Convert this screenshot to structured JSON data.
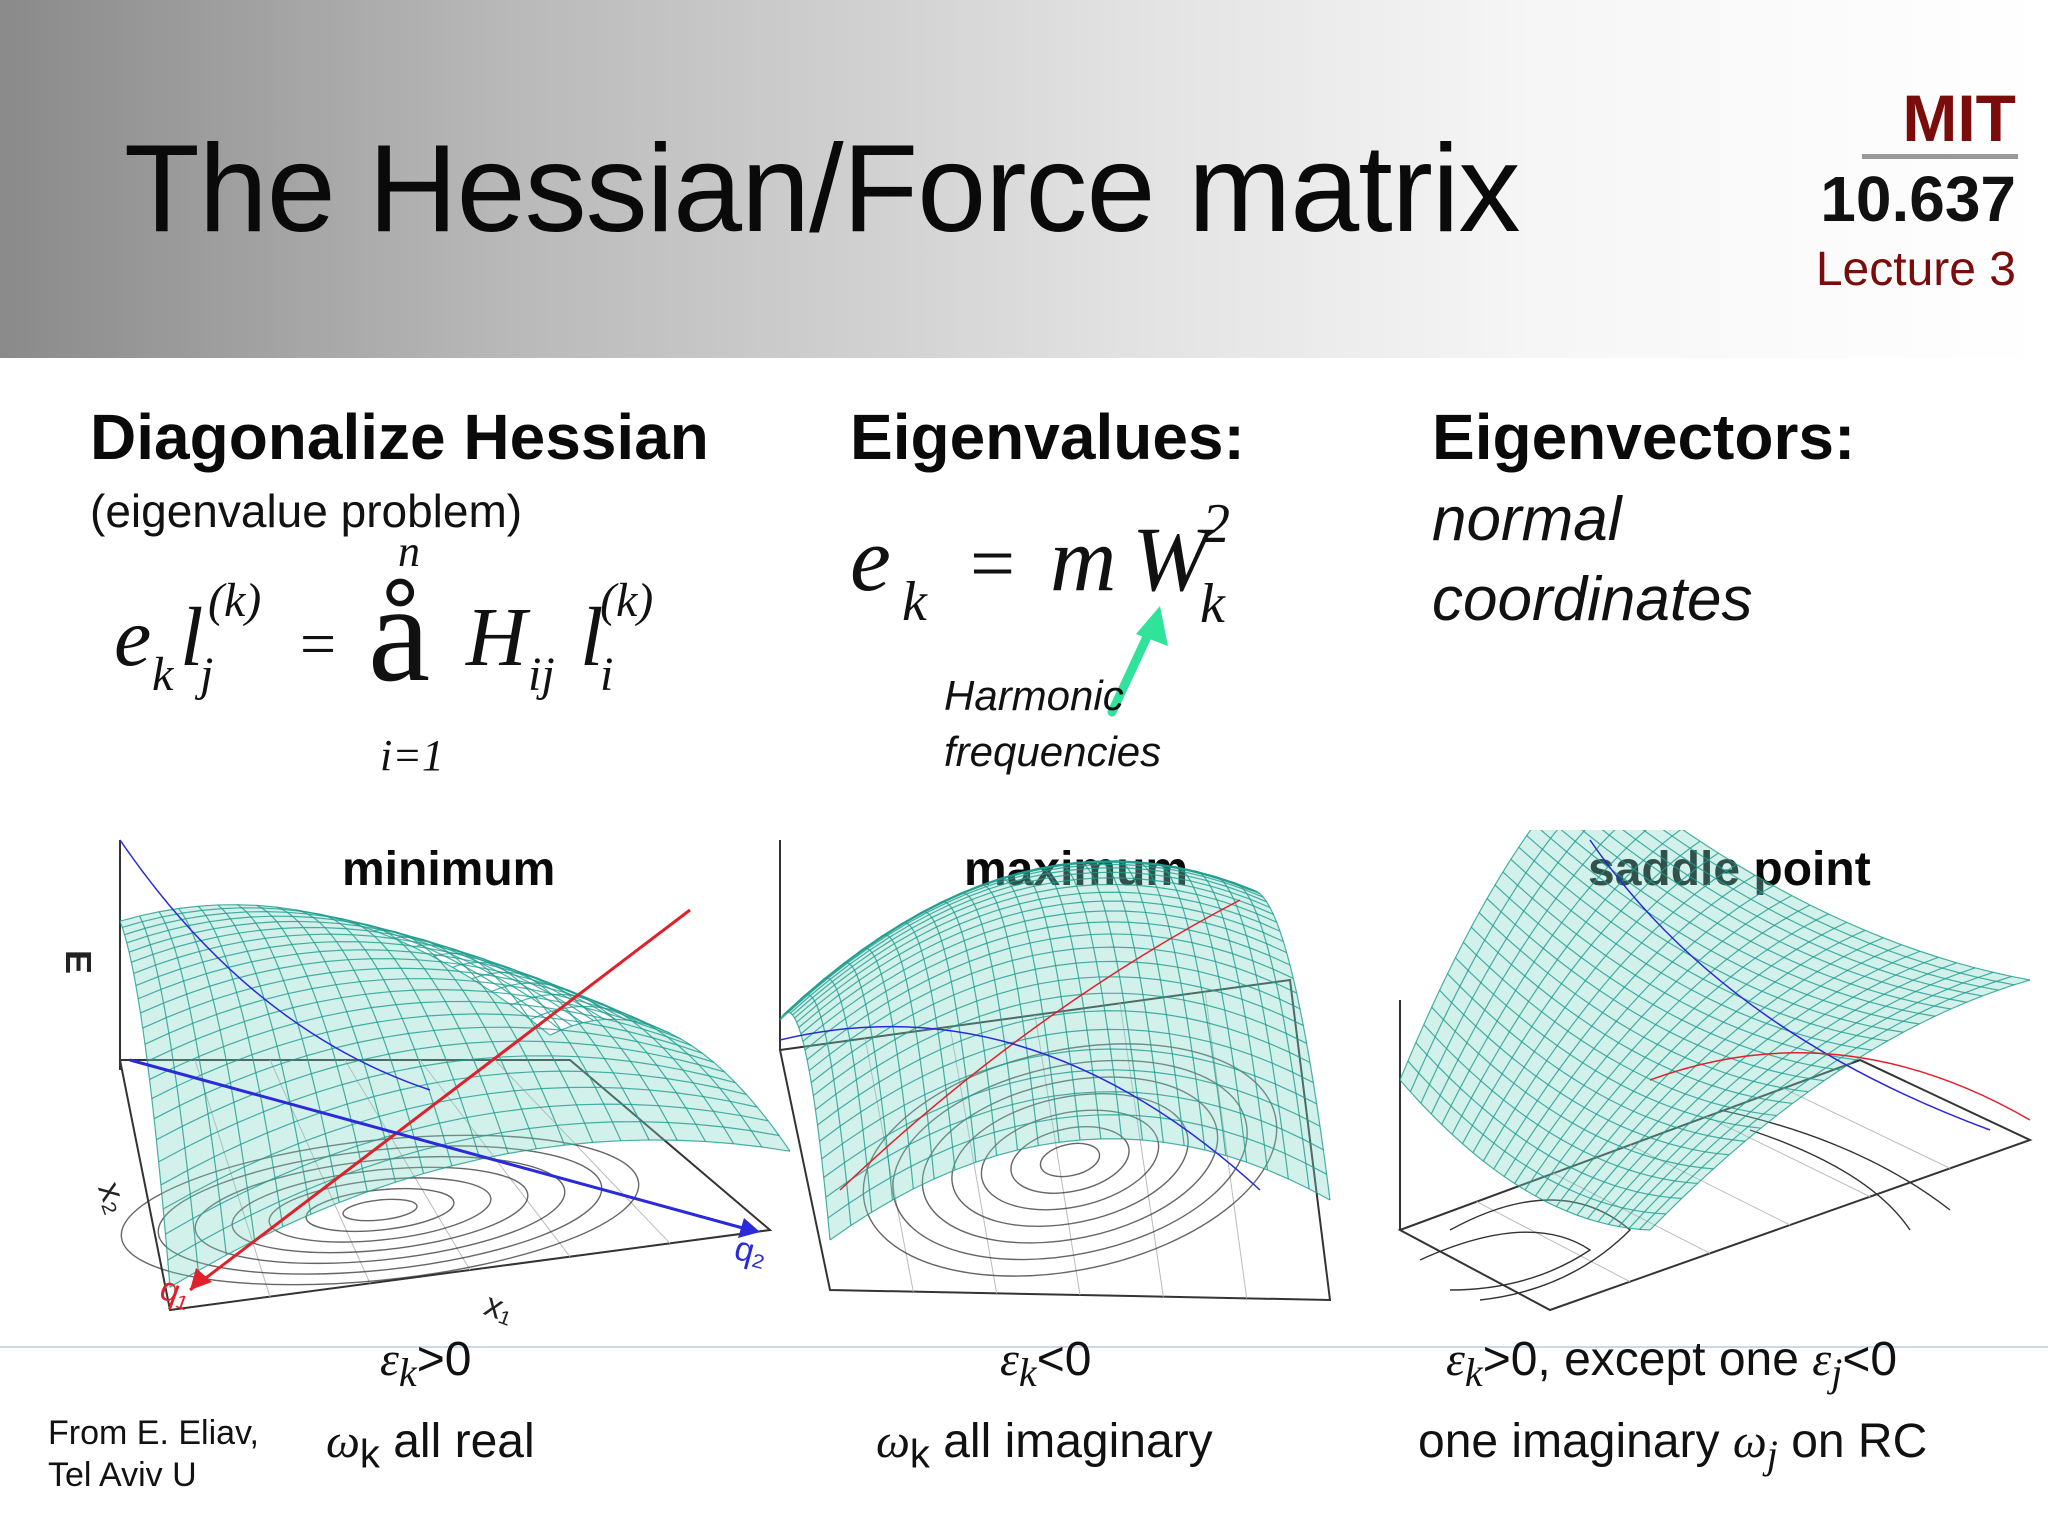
{
  "header": {
    "title": "The Hessian/Force matrix",
    "institution": "MIT",
    "course": "10.637",
    "lecture": "Lecture 3",
    "accent_color": "#7a0c0c"
  },
  "diagonalize": {
    "heading": "Diagonalize Hessian",
    "subheading": "(eigenvalue problem)",
    "equation": {
      "lhs_e": "e",
      "lhs_e_sub": "k",
      "lhs_l": "l",
      "lhs_l_sub": "j",
      "lhs_l_sup": "(k)",
      "equals": "=",
      "sum_symbol": "å",
      "sum_top": "n",
      "sum_bottom": "i=1",
      "rhs_H": "H",
      "rhs_H_sub": "ij",
      "rhs_l": "l",
      "rhs_l_sub": "i",
      "rhs_l_sup": "(k)"
    }
  },
  "eigenvalues": {
    "heading": "Eigenvalues:",
    "equation": {
      "e": "e",
      "e_sub": "k",
      "equals": "=",
      "m": "m",
      "W": "W",
      "W_sup": "2",
      "W_sub": "k"
    },
    "annotation_line1": "Harmonic",
    "annotation_line2": "frequencies",
    "arrow_color": "#2fe39a"
  },
  "eigenvectors": {
    "heading": "Eigenvectors:",
    "line1": "normal",
    "line2": "coordinates"
  },
  "plots": [
    {
      "label": "minimum",
      "axis_e": "E",
      "axis_x1": "x₁",
      "axis_x2": "x₂",
      "axis_q1": "q₁",
      "axis_q2": "q₂"
    },
    {
      "label": "maximum"
    },
    {
      "label": "saddle point"
    }
  ],
  "conditions": [
    {
      "eps": "ε",
      "eps_sub": "k",
      "relation": ">0",
      "omega": "ω",
      "omega_sub": "k",
      "omega_text": " all real"
    },
    {
      "eps": "ε",
      "eps_sub": "k",
      "relation": "<0",
      "omega": "ω",
      "omega_sub": "k",
      "omega_text": " all imaginary"
    },
    {
      "eps": "ε",
      "eps_sub": "k",
      "relation": ">0, except one ",
      "eps2": "ε",
      "eps2_sub": "j",
      "relation2": "<0",
      "omega_prefix": "one imaginary ",
      "omega": "ω",
      "omega_sub": "j",
      "omega_text": " on RC"
    }
  ],
  "credit": {
    "line1": "From E. Eliav,",
    "line2": "Tel Aviv U"
  },
  "colors": {
    "mesh": "#1f9c8e",
    "surface": "#7fd6c7",
    "contour": "#333333",
    "q1_axis": "#e0202a",
    "q2_axis": "#2a2ad8"
  }
}
